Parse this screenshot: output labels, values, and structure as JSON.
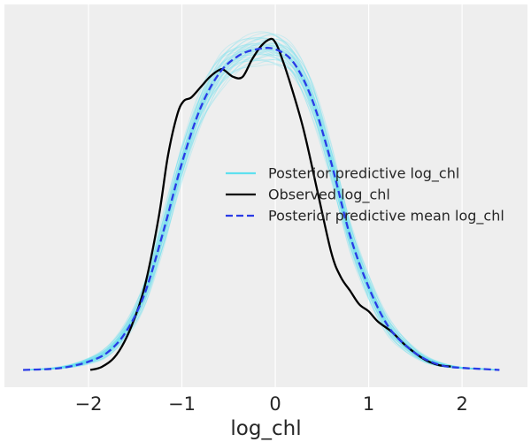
{
  "chart_data": {
    "type": "line",
    "title": "",
    "xlabel": "log_chl",
    "ylabel": "",
    "xlim": [
      -2.9,
      2.7
    ],
    "ylim": [
      -0.025,
      0.53
    ],
    "xticks": [
      -2,
      -1,
      0,
      1,
      2
    ],
    "xtick_labels": [
      "−2",
      "−1",
      "0",
      "1",
      "2"
    ],
    "grid": true,
    "legend_position": "center-right",
    "colors": {
      "background": "#eeeeee",
      "grid": "#ffffff",
      "posterior_predictive": "#5ee0ef",
      "observed": "#000000",
      "posterior_mean": "#2a3be6"
    },
    "series": [
      {
        "name": "Posterior predictive log_chl",
        "style": "band",
        "x": [
          -2.7,
          -2.4,
          -2.2,
          -2.0,
          -1.8,
          -1.6,
          -1.4,
          -1.2,
          -1.0,
          -0.8,
          -0.6,
          -0.4,
          -0.2,
          0.0,
          0.2,
          0.4,
          0.6,
          0.8,
          1.0,
          1.2,
          1.4,
          1.6,
          1.8,
          2.0,
          2.2,
          2.4
        ],
        "lower": [
          0.0,
          0.001,
          0.003,
          0.008,
          0.018,
          0.045,
          0.09,
          0.17,
          0.27,
          0.35,
          0.4,
          0.43,
          0.44,
          0.44,
          0.42,
          0.36,
          0.27,
          0.17,
          0.1,
          0.05,
          0.025,
          0.01,
          0.004,
          0.002,
          0.001,
          0.0
        ],
        "upper": [
          0.0,
          0.003,
          0.008,
          0.018,
          0.035,
          0.07,
          0.13,
          0.23,
          0.33,
          0.41,
          0.46,
          0.48,
          0.49,
          0.49,
          0.47,
          0.42,
          0.33,
          0.22,
          0.14,
          0.08,
          0.045,
          0.022,
          0.01,
          0.004,
          0.002,
          0.0
        ]
      },
      {
        "name": "Observed log_chl",
        "style": "solid",
        "x": [
          -1.98,
          -1.85,
          -1.7,
          -1.55,
          -1.4,
          -1.25,
          -1.15,
          -1.05,
          -0.98,
          -0.9,
          -0.8,
          -0.7,
          -0.6,
          -0.55,
          -0.45,
          -0.35,
          -0.25,
          -0.15,
          -0.05,
          0.0,
          0.05,
          0.15,
          0.3,
          0.45,
          0.6,
          0.7,
          0.8,
          0.9,
          1.0,
          1.1,
          1.25,
          1.4,
          1.6,
          1.75,
          1.88
        ],
        "y": [
          0.0,
          0.005,
          0.022,
          0.06,
          0.12,
          0.22,
          0.31,
          0.37,
          0.39,
          0.395,
          0.41,
          0.425,
          0.435,
          0.435,
          0.425,
          0.425,
          0.45,
          0.47,
          0.48,
          0.475,
          0.46,
          0.42,
          0.35,
          0.26,
          0.17,
          0.135,
          0.115,
          0.095,
          0.085,
          0.07,
          0.055,
          0.035,
          0.015,
          0.007,
          0.005
        ]
      },
      {
        "name": "Posterior predictive mean log_chl",
        "style": "dashed",
        "x": [
          -2.7,
          -2.4,
          -2.2,
          -2.0,
          -1.8,
          -1.6,
          -1.4,
          -1.2,
          -1.0,
          -0.8,
          -0.6,
          -0.4,
          -0.2,
          0.0,
          0.2,
          0.4,
          0.6,
          0.8,
          1.0,
          1.2,
          1.4,
          1.6,
          1.8,
          2.0,
          2.2,
          2.4
        ],
        "y": [
          0.0,
          0.0015,
          0.005,
          0.012,
          0.025,
          0.055,
          0.11,
          0.2,
          0.3,
          0.38,
          0.43,
          0.455,
          0.465,
          0.465,
          0.445,
          0.39,
          0.3,
          0.195,
          0.12,
          0.065,
          0.035,
          0.016,
          0.006,
          0.003,
          0.0015,
          0.0
        ]
      }
    ]
  }
}
